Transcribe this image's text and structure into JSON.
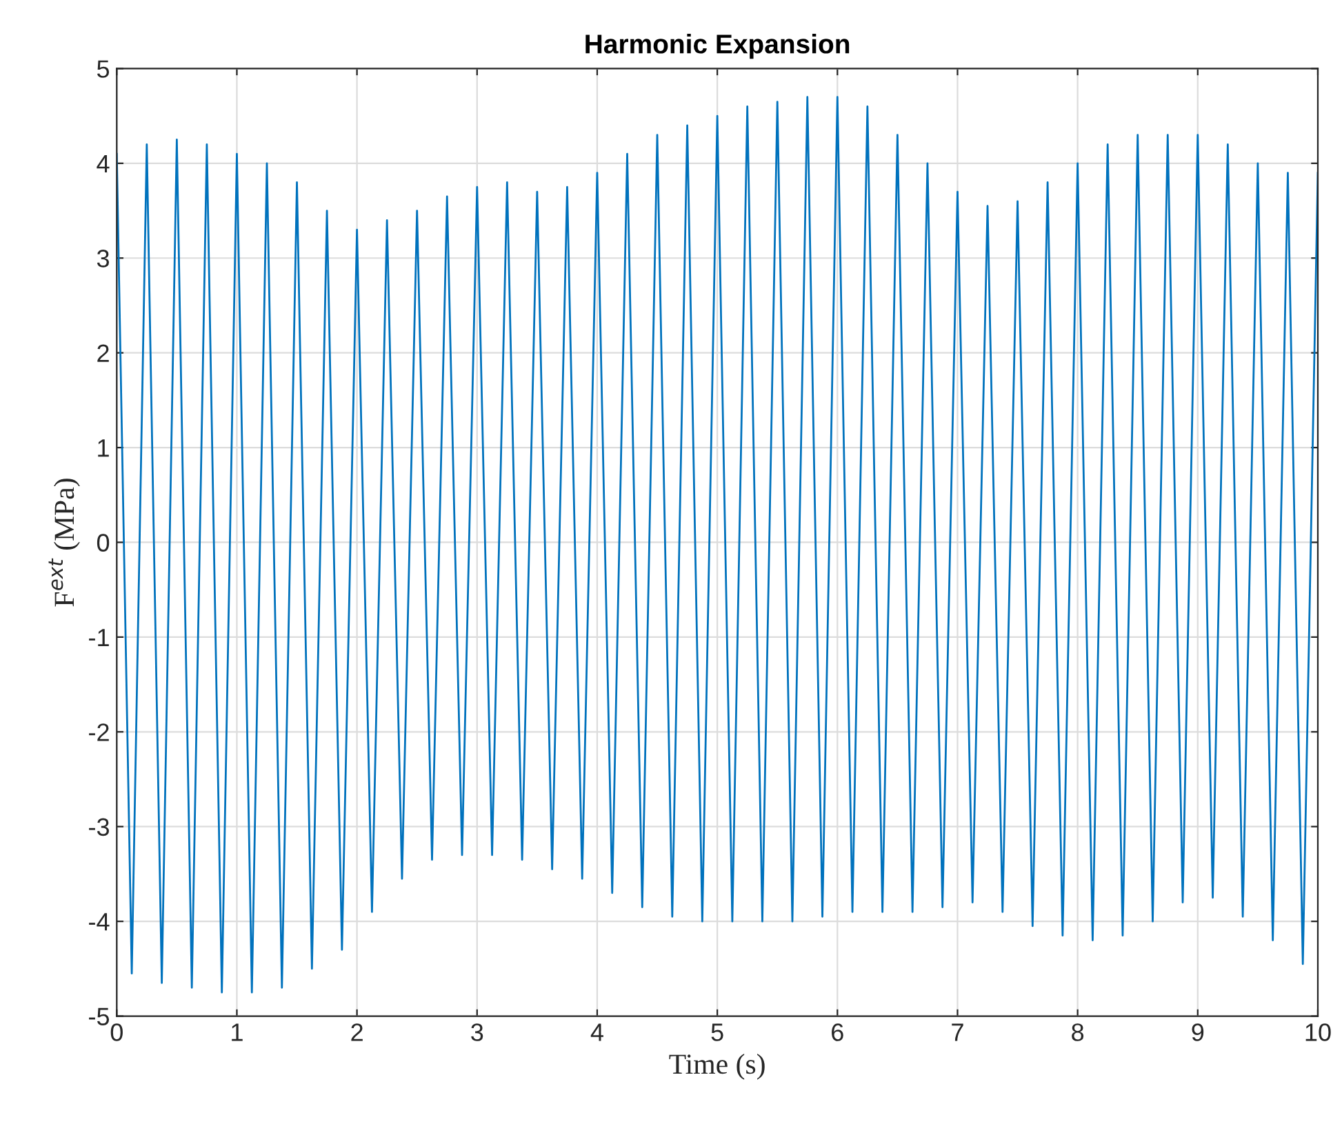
{
  "chart_data": {
    "type": "line",
    "title": "Harmonic Expansion",
    "xlabel": "Time (s)",
    "ylabel": "F$^{ext}$ (MPa)",
    "xlim": [
      0,
      10
    ],
    "xticks": [
      0,
      1,
      2,
      3,
      4,
      5,
      6,
      7,
      8,
      9,
      10
    ],
    "ylim": [
      -5,
      5
    ],
    "yticks": [
      -5,
      -4,
      -3,
      -2,
      -1,
      0,
      1,
      2,
      3,
      4,
      5
    ],
    "grid": true,
    "marker": "none",
    "line_style": "solid",
    "series": [
      {
        "color": "#0072bd",
        "x": [
          0,
          0.125,
          0.25,
          0.375,
          0.5,
          0.625,
          0.75,
          0.875,
          1,
          1.125,
          1.25,
          1.375,
          1.5,
          1.625,
          1.75,
          1.875,
          2,
          2.125,
          2.25,
          2.375,
          2.5,
          2.625,
          2.75,
          2.875,
          3,
          3.125,
          3.25,
          3.375,
          3.5,
          3.625,
          3.75,
          3.875,
          4,
          4.125,
          4.25,
          4.375,
          4.5,
          4.625,
          4.75,
          4.875,
          5,
          5.125,
          5.25,
          5.375,
          5.5,
          5.625,
          5.75,
          5.875,
          6,
          6.125,
          6.25,
          6.375,
          6.5,
          6.625,
          6.75,
          6.875,
          7,
          7.125,
          7.25,
          7.375,
          7.5,
          7.625,
          7.75,
          7.875,
          8,
          8.125,
          8.25,
          8.375,
          8.5,
          8.625,
          8.75,
          8.875,
          9,
          9.125,
          9.25,
          9.375,
          9.5,
          9.625,
          9.75,
          9.875,
          10
        ],
        "values": [
          4.1,
          -4.55,
          4.2,
          -4.65,
          4.25,
          -4.7,
          4.2,
          -4.75,
          4.1,
          -4.75,
          4.0,
          -4.7,
          3.8,
          -4.5,
          3.5,
          -4.3,
          3.3,
          -3.9,
          3.4,
          -3.55,
          3.5,
          -3.35,
          3.65,
          -3.3,
          3.75,
          -3.3,
          3.8,
          -3.35,
          3.7,
          -3.45,
          3.75,
          -3.55,
          3.9,
          -3.7,
          4.1,
          -3.85,
          4.3,
          -3.95,
          4.4,
          -4.0,
          4.5,
          -4.0,
          4.6,
          -4.0,
          4.65,
          -4.0,
          4.7,
          -3.95,
          4.7,
          -3.9,
          4.6,
          -3.9,
          4.3,
          -3.9,
          4.0,
          -3.85,
          3.7,
          -3.8,
          3.55,
          -3.9,
          3.6,
          -4.05,
          3.8,
          -4.15,
          4.0,
          -4.2,
          4.2,
          -4.15,
          4.3,
          -4.0,
          4.3,
          -3.8,
          4.3,
          -3.75,
          4.2,
          -3.95,
          4.0,
          -4.2,
          3.9,
          -4.45,
          3.9
        ]
      }
    ]
  }
}
